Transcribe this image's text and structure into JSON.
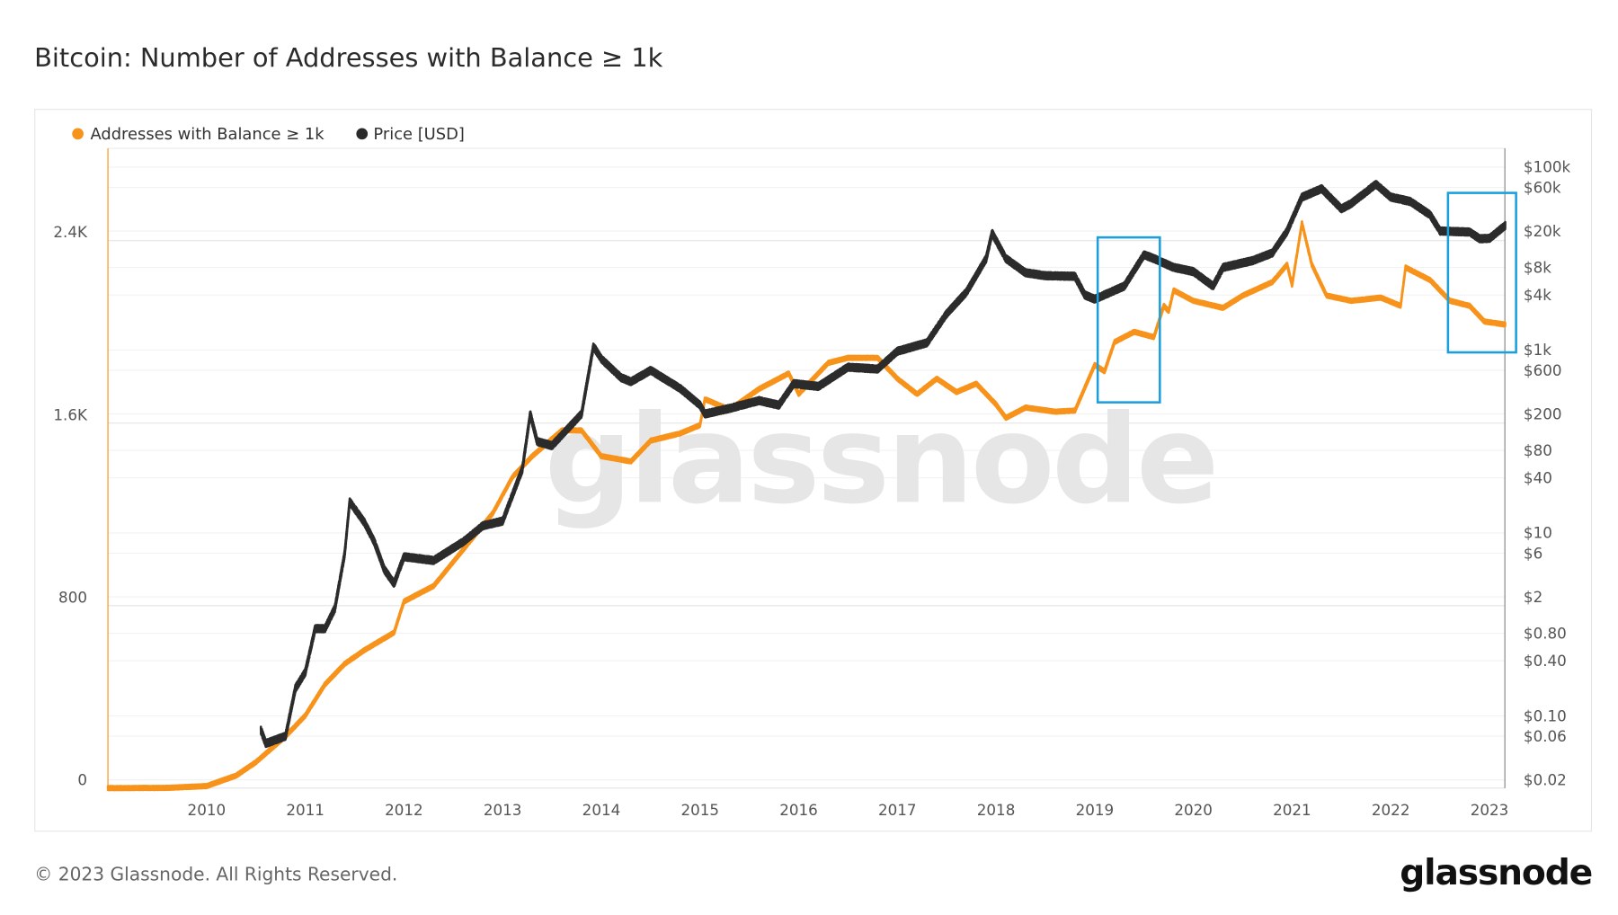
{
  "title": "Bitcoin: Number of Addresses with Balance ≥ 1k",
  "footer": {
    "copyright": "© 2023 Glassnode. All Rights Reserved.",
    "logo": "glassnode"
  },
  "watermark": "glassnode",
  "colors": {
    "addresses": "#F7931A",
    "price": "#2b2b2b",
    "highlight": "#1a9fdc",
    "grid": "#ececec"
  },
  "chart_data": {
    "type": "line",
    "title": "Bitcoin: Number of Addresses with Balance ≥ 1k",
    "legend": {
      "placement": "top-left",
      "entries": [
        "Addresses with Balance ≥ 1k",
        "Price [USD]"
      ]
    },
    "x": {
      "range": [
        2009.0,
        2023.16
      ],
      "ticks": [
        "2010",
        "2011",
        "2012",
        "2013",
        "2014",
        "2015",
        "2016",
        "2017",
        "2018",
        "2019",
        "2020",
        "2021",
        "2022",
        "2023"
      ]
    },
    "y_left": {
      "range": [
        0,
        2805
      ],
      "ticks": [
        {
          "v": 0,
          "label": "0"
        },
        {
          "v": 800,
          "label": "800"
        },
        {
          "v": 1600,
          "label": "1.6K"
        },
        {
          "v": 2400,
          "label": "2.4K"
        }
      ]
    },
    "y_right": {
      "scale": "log",
      "range": [
        0.016,
        160000
      ],
      "ticks": [
        {
          "v": 100000,
          "label": "$100k"
        },
        {
          "v": 60000,
          "label": "$60k"
        },
        {
          "v": 20000,
          "label": "$20k"
        },
        {
          "v": 8000,
          "label": "$8k"
        },
        {
          "v": 4000,
          "label": "$4k"
        },
        {
          "v": 1000,
          "label": "$1k"
        },
        {
          "v": 600,
          "label": "$600"
        },
        {
          "v": 200,
          "label": "$200"
        },
        {
          "v": 80,
          "label": "$80"
        },
        {
          "v": 40,
          "label": "$40"
        },
        {
          "v": 10,
          "label": "$10"
        },
        {
          "v": 6,
          "label": "$6"
        },
        {
          "v": 2,
          "label": "$2"
        },
        {
          "v": 0.8,
          "label": "$0.80"
        },
        {
          "v": 0.4,
          "label": "$0.40"
        },
        {
          "v": 0.1,
          "label": "$0.10"
        },
        {
          "v": 0.06,
          "label": "$0.06"
        },
        {
          "v": 0.02,
          "label": "$0.02"
        }
      ]
    },
    "grid": true,
    "series": [
      {
        "name": "Addresses with Balance ≥ 1k",
        "axis": "left",
        "points": [
          [
            2009.0,
            0
          ],
          [
            2009.6,
            1
          ],
          [
            2010.0,
            9
          ],
          [
            2010.3,
            55
          ],
          [
            2010.5,
            114
          ],
          [
            2010.8,
            227
          ],
          [
            2011.0,
            318
          ],
          [
            2011.2,
            455
          ],
          [
            2011.4,
            545
          ],
          [
            2011.6,
            605
          ],
          [
            2011.9,
            682
          ],
          [
            2012.0,
            818
          ],
          [
            2012.3,
            886
          ],
          [
            2012.6,
            1045
          ],
          [
            2012.9,
            1205
          ],
          [
            2013.1,
            1364
          ],
          [
            2013.3,
            1455
          ],
          [
            2013.6,
            1568
          ],
          [
            2013.8,
            1568
          ],
          [
            2014.0,
            1455
          ],
          [
            2014.3,
            1432
          ],
          [
            2014.5,
            1523
          ],
          [
            2014.8,
            1555
          ],
          [
            2015.0,
            1591
          ],
          [
            2015.05,
            1705
          ],
          [
            2015.3,
            1659
          ],
          [
            2015.6,
            1750
          ],
          [
            2015.9,
            1818
          ],
          [
            2016.0,
            1727
          ],
          [
            2016.3,
            1864
          ],
          [
            2016.5,
            1886
          ],
          [
            2016.8,
            1886
          ],
          [
            2017.0,
            1795
          ],
          [
            2017.2,
            1727
          ],
          [
            2017.4,
            1795
          ],
          [
            2017.6,
            1736
          ],
          [
            2017.8,
            1773
          ],
          [
            2018.0,
            1682
          ],
          [
            2018.1,
            1623
          ],
          [
            2018.3,
            1668
          ],
          [
            2018.6,
            1650
          ],
          [
            2018.8,
            1655
          ],
          [
            2019.0,
            1855
          ],
          [
            2019.1,
            1827
          ],
          [
            2019.2,
            1955
          ],
          [
            2019.4,
            2000
          ],
          [
            2019.6,
            1977
          ],
          [
            2019.7,
            2114
          ],
          [
            2019.75,
            2091
          ],
          [
            2019.8,
            2182
          ],
          [
            2020.0,
            2136
          ],
          [
            2020.3,
            2105
          ],
          [
            2020.5,
            2159
          ],
          [
            2020.8,
            2218
          ],
          [
            2020.95,
            2295
          ],
          [
            2021.0,
            2205
          ],
          [
            2021.1,
            2477
          ],
          [
            2021.2,
            2295
          ],
          [
            2021.35,
            2159
          ],
          [
            2021.6,
            2136
          ],
          [
            2021.9,
            2150
          ],
          [
            2022.1,
            2114
          ],
          [
            2022.15,
            2282
          ],
          [
            2022.4,
            2227
          ],
          [
            2022.6,
            2136
          ],
          [
            2022.8,
            2114
          ],
          [
            2022.95,
            2045
          ],
          [
            2023.16,
            2032
          ]
        ]
      },
      {
        "name": "Price [USD]",
        "axis": "right",
        "points": [
          [
            2010.55,
            0.07
          ],
          [
            2010.6,
            0.05
          ],
          [
            2010.8,
            0.06
          ],
          [
            2010.9,
            0.2
          ],
          [
            2011.0,
            0.3
          ],
          [
            2011.1,
            0.9
          ],
          [
            2011.2,
            0.9
          ],
          [
            2011.3,
            1.5
          ],
          [
            2011.4,
            6
          ],
          [
            2011.45,
            22
          ],
          [
            2011.6,
            13
          ],
          [
            2011.7,
            8
          ],
          [
            2011.8,
            4
          ],
          [
            2011.9,
            2.8
          ],
          [
            2012.0,
            5.5
          ],
          [
            2012.3,
            5
          ],
          [
            2012.6,
            8
          ],
          [
            2012.8,
            12
          ],
          [
            2013.0,
            13.5
          ],
          [
            2013.2,
            50
          ],
          [
            2013.28,
            200
          ],
          [
            2013.35,
            100
          ],
          [
            2013.5,
            90
          ],
          [
            2013.8,
            200
          ],
          [
            2013.92,
            1100
          ],
          [
            2014.0,
            800
          ],
          [
            2014.2,
            500
          ],
          [
            2014.3,
            450
          ],
          [
            2014.5,
            600
          ],
          [
            2014.8,
            380
          ],
          [
            2015.0,
            250
          ],
          [
            2015.05,
            200
          ],
          [
            2015.3,
            230
          ],
          [
            2015.6,
            280
          ],
          [
            2015.8,
            250
          ],
          [
            2015.95,
            430
          ],
          [
            2016.2,
            400
          ],
          [
            2016.5,
            650
          ],
          [
            2016.8,
            620
          ],
          [
            2017.0,
            970
          ],
          [
            2017.3,
            1200
          ],
          [
            2017.5,
            2500
          ],
          [
            2017.7,
            4300
          ],
          [
            2017.9,
            10000
          ],
          [
            2017.96,
            19000
          ],
          [
            2018.1,
            10000
          ],
          [
            2018.3,
            7000
          ],
          [
            2018.5,
            6500
          ],
          [
            2018.8,
            6400
          ],
          [
            2018.9,
            4000
          ],
          [
            2019.0,
            3600
          ],
          [
            2019.3,
            5000
          ],
          [
            2019.5,
            11000
          ],
          [
            2019.6,
            10000
          ],
          [
            2019.8,
            8000
          ],
          [
            2020.0,
            7200
          ],
          [
            2020.2,
            5000
          ],
          [
            2020.3,
            8000
          ],
          [
            2020.6,
            9500
          ],
          [
            2020.8,
            11500
          ],
          [
            2020.95,
            20000
          ],
          [
            2021.1,
            47000
          ],
          [
            2021.3,
            58000
          ],
          [
            2021.5,
            35000
          ],
          [
            2021.6,
            40000
          ],
          [
            2021.85,
            65000
          ],
          [
            2022.0,
            47000
          ],
          [
            2022.2,
            42000
          ],
          [
            2022.4,
            30000
          ],
          [
            2022.5,
            20000
          ],
          [
            2022.8,
            19500
          ],
          [
            2022.9,
            16500
          ],
          [
            2023.0,
            16600
          ],
          [
            2023.16,
            23000
          ]
        ]
      }
    ],
    "annotations": [
      {
        "type": "highlight-box",
        "x_range": [
          2019.03,
          2019.66
        ],
        "y_left_range": [
          1691,
          2414
        ]
      },
      {
        "type": "highlight-box",
        "x_range": [
          2022.58,
          2023.27
        ],
        "y_left_range": [
          1910,
          2609
        ]
      }
    ]
  }
}
